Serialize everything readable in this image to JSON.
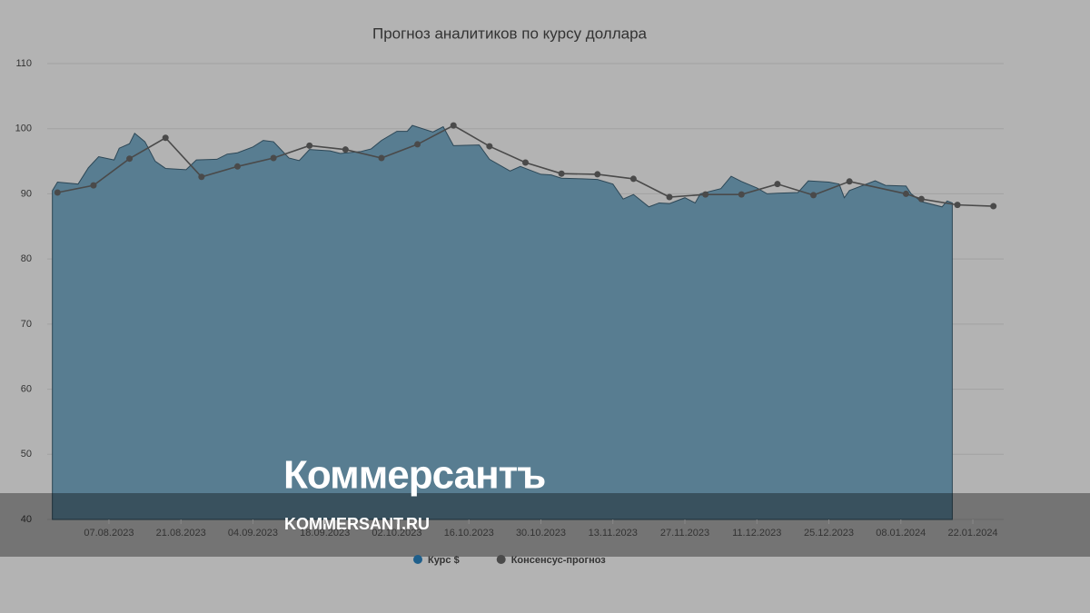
{
  "chart_data": {
    "type": "line",
    "title": "Прогноз аналитиков по курсу доллара",
    "x_type": "date",
    "xlim": [
      "2023-07-26",
      "2024-01-28"
    ],
    "xticks": [
      {
        "value": "2023-08-07",
        "label": "07.08.2023"
      },
      {
        "value": "2023-08-21",
        "label": "21.08.2023"
      },
      {
        "value": "2023-09-04",
        "label": "04.09.2023"
      },
      {
        "value": "2023-09-18",
        "label": "18.09.2023"
      },
      {
        "value": "2023-10-02",
        "label": "02.10.2023"
      },
      {
        "value": "2023-10-16",
        "label": "16.10.2023"
      },
      {
        "value": "2023-10-30",
        "label": "30.10.2023"
      },
      {
        "value": "2023-11-13",
        "label": "13.11.2023"
      },
      {
        "value": "2023-11-27",
        "label": "27.11.2023"
      },
      {
        "value": "2023-12-11",
        "label": "11.12.2023"
      },
      {
        "value": "2023-12-25",
        "label": "25.12.2023"
      },
      {
        "value": "2024-01-08",
        "label": "08.01.2024"
      },
      {
        "value": "2024-01-22",
        "label": "22.01.2024"
      }
    ],
    "ylim": [
      40,
      110
    ],
    "yticks": [
      40,
      50,
      60,
      70,
      80,
      90,
      100,
      110
    ],
    "grid": true,
    "series": [
      {
        "name": "Курс $",
        "kind": "area",
        "color": "#1f5f8b",
        "fill": "#587d91",
        "x": [
          "2023-07-27",
          "2023-07-28",
          "2023-08-01",
          "2023-08-03",
          "2023-08-05",
          "2023-08-08",
          "2023-08-09",
          "2023-08-11",
          "2023-08-12",
          "2023-08-14",
          "2023-08-16",
          "2023-08-18",
          "2023-08-22",
          "2023-08-24",
          "2023-08-28",
          "2023-08-30",
          "2023-09-01",
          "2023-09-04",
          "2023-09-06",
          "2023-09-08",
          "2023-09-11",
          "2023-09-13",
          "2023-09-15",
          "2023-09-19",
          "2023-09-21",
          "2023-09-25",
          "2023-09-27",
          "2023-09-29",
          "2023-10-02",
          "2023-10-04",
          "2023-10-05",
          "2023-10-09",
          "2023-10-11",
          "2023-10-13",
          "2023-10-18",
          "2023-10-20",
          "2023-10-24",
          "2023-10-26",
          "2023-10-30",
          "2023-11-01",
          "2023-11-03",
          "2023-11-07",
          "2023-11-10",
          "2023-11-13",
          "2023-11-15",
          "2023-11-17",
          "2023-11-20",
          "2023-11-22",
          "2023-11-24",
          "2023-11-27",
          "2023-11-29",
          "2023-11-30",
          "2023-12-04",
          "2023-12-06",
          "2023-12-08",
          "2023-12-11",
          "2023-12-13",
          "2023-12-15",
          "2023-12-19",
          "2023-12-21",
          "2023-12-25",
          "2023-12-27",
          "2023-12-28",
          "2023-12-29",
          "2024-01-03",
          "2024-01-05",
          "2024-01-09",
          "2024-01-10",
          "2024-01-12",
          "2024-01-16",
          "2024-01-17",
          "2024-01-18"
        ],
        "values": [
          90.5,
          91.8,
          91.5,
          94,
          95.7,
          95.2,
          97,
          97.7,
          99.3,
          98,
          95,
          93.9,
          93.7,
          95.2,
          95.3,
          96.1,
          96.3,
          97.2,
          98.2,
          98,
          95.5,
          95.1,
          96.8,
          96.6,
          96.2,
          96.5,
          96.9,
          98.2,
          99.6,
          99.6,
          100.5,
          99.5,
          100.3,
          97.4,
          97.5,
          95.3,
          93.5,
          94.2,
          93,
          92.9,
          92.4,
          92.3,
          92.2,
          91.5,
          89.2,
          89.9,
          88,
          88.6,
          88.5,
          89.4,
          88.6,
          90,
          90.8,
          92.7,
          91.9,
          90.9,
          90,
          90.1,
          90.2,
          92,
          91.8,
          91.5,
          89.4,
          90.5,
          92,
          91.3,
          91.2,
          90,
          88.8,
          88,
          88.9,
          88.6
        ]
      },
      {
        "name": "Консенсус-прогноз",
        "kind": "line",
        "color": "#4a4a4a",
        "x": [
          "2023-07-28",
          "2023-08-04",
          "2023-08-11",
          "2023-08-18",
          "2023-08-25",
          "2023-09-01",
          "2023-09-08",
          "2023-09-15",
          "2023-09-22",
          "2023-09-29",
          "2023-10-06",
          "2023-10-13",
          "2023-10-20",
          "2023-10-27",
          "2023-11-03",
          "2023-11-10",
          "2023-11-17",
          "2023-11-24",
          "2023-12-01",
          "2023-12-08",
          "2023-12-15",
          "2023-12-22",
          "2023-12-29",
          "2024-01-09",
          "2024-01-12",
          "2024-01-19",
          "2024-01-26"
        ],
        "values": [
          90.2,
          91.3,
          95.4,
          98.6,
          92.6,
          94.2,
          95.5,
          97.4,
          96.8,
          95.5,
          97.6,
          100.5,
          97.3,
          94.8,
          93.1,
          93,
          92.3,
          89.5,
          89.9,
          89.9,
          91.5,
          89.8,
          91.9,
          90,
          89.2,
          88.3,
          88.1
        ]
      }
    ],
    "legend": "bottom"
  },
  "watermark": {
    "logo": "Коммерсантъ",
    "url": "KOMMERSANT.RU"
  }
}
